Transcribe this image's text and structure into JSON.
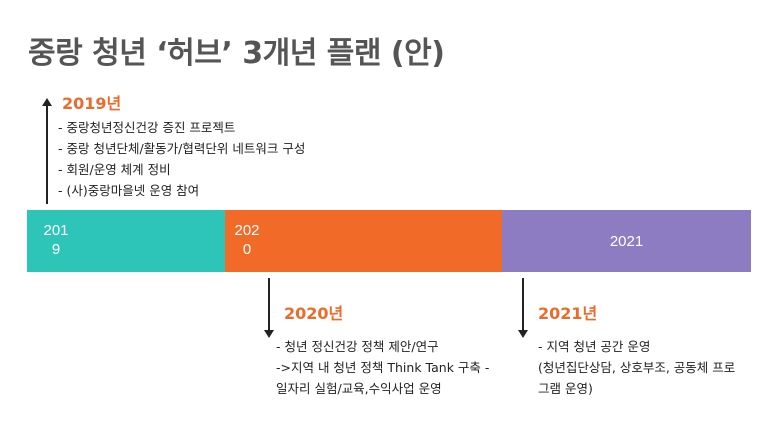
{
  "title": "중랑 청년 ‘허브’ 3개년 플랜 (안)",
  "colors": {
    "title": "#555555",
    "heading": "#ec6a2a",
    "seg_2019": "#2ec5b9",
    "seg_2020": "#f26a27",
    "seg_2021": "#8d7cc2"
  },
  "timeline": {
    "seg_2019": {
      "line1": "201",
      "line2": "9"
    },
    "seg_2020": {
      "line1": "202",
      "line2": "0"
    },
    "seg_2021": {
      "label": "2021"
    }
  },
  "y2019": {
    "heading": "2019년",
    "items": [
      "- 중랑청년정신건강 증진 프로젝트",
      "- 중랑 청년단체/활동가/협력단위 네트워크 구성",
      "- 회원/운영 체계 정비",
      "- (사)중랑마을넷 운영 참여"
    ]
  },
  "y2020": {
    "heading": "2020년",
    "items": [
      "- 청년 정신건강 정책 제안/연구",
      "->지역 내 청년 정책 Think Tank 구축  - 일자리 실험/교육,수익사업 운영"
    ]
  },
  "y2021": {
    "heading": "2021년",
    "items": [
      "- 지역 청년 공간 운영",
      "(청년집단상담, 상호부조, 공동체 프로그램 운영)"
    ]
  }
}
